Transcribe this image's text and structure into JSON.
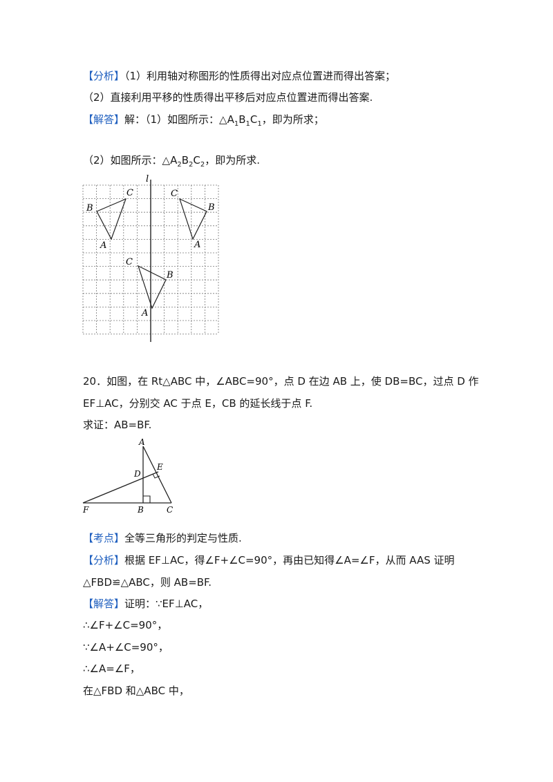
{
  "part19": {
    "analysis_tag": "【分析】",
    "analysis_1": "（1）利用轴对称图形的性质得出对应点位置进而得出答案；",
    "analysis_2": "（2）直接利用平移的性质得出平移后对应点位置进而得出答案.",
    "solution_tag": "【解答】",
    "solution_1_pre": "解：（1）如图所示：△A",
    "solution_1_post": "，即为所求；",
    "solution_2_pre": "（2）如图所示：△A",
    "solution_2_post": "，即为所求."
  },
  "grid_figure": {
    "labels": {
      "l": "l",
      "C1": "C",
      "B1": "B",
      "A1": "A",
      "C": "C",
      "B": "B",
      "A": "A",
      "C2": "C",
      "B2": "B",
      "A2": "A",
      "sub1": "1",
      "sub2": "2"
    }
  },
  "problem20": {
    "line1": "20．如图，在 Rt△ABC 中，∠ABC=90°，点 D 在边 AB 上，使 DB=BC，过点 D 作",
    "line2": "EF⊥AC，分别交 AC 于点 E，CB 的延长线于点 F.",
    "prove": "求证：AB=BF."
  },
  "triangle_figure": {
    "labels": {
      "A": "A",
      "D": "D",
      "E": "E",
      "F": "F",
      "B": "B",
      "C": "C"
    }
  },
  "answer20": {
    "kaodian_tag": "【考点】",
    "kaodian": "全等三角形的判定与性质.",
    "analysis_tag": "【分析】",
    "analysis_1": "根据 EF⊥AC，得∠F+∠C=90°，再由已知得∠A=∠F，从而 AAS 证明",
    "analysis_2": "△FBD≌△ABC，则 AB=BF.",
    "solution_tag": "【解答】",
    "solution": "证明：∵EF⊥AC，",
    "step1": "∴∠F+∠C=90°，",
    "step2": "∵∠A+∠C=90°，",
    "step3": "∴∠A=∠F，",
    "step4": "在△FBD 和△ABC 中，"
  }
}
